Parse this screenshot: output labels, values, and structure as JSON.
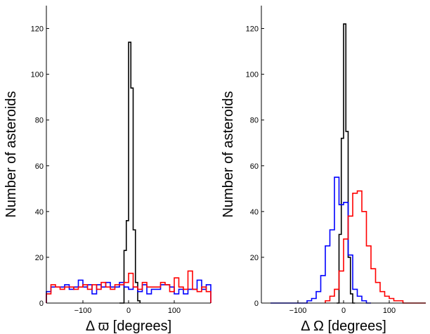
{
  "chart_data": [
    {
      "type": "histogram",
      "xlabel": "Δ ϖ [degrees]",
      "ylabel": "Number of asteroids",
      "xlim": [
        -180,
        180
      ],
      "ylim": [
        0,
        130
      ],
      "xticks": [
        -100,
        0,
        100
      ],
      "yticks": [
        0,
        20,
        40,
        60,
        80,
        100,
        120
      ],
      "grid": false,
      "series": [
        {
          "color": "#000000",
          "bins": [
            {
              "x0": -20,
              "x1": -10,
              "y": 0
            },
            {
              "x0": -10,
              "x1": -5,
              "y": 23
            },
            {
              "x0": -5,
              "x1": 0,
              "y": 36
            },
            {
              "x0": 0,
              "x1": 5,
              "y": 114
            },
            {
              "x0": 5,
              "x1": 10,
              "y": 94
            },
            {
              "x0": 10,
              "x1": 15,
              "y": 32
            },
            {
              "x0": 15,
              "x1": 20,
              "y": 9
            },
            {
              "x0": 20,
              "x1": 25,
              "y": 1
            }
          ]
        },
        {
          "color": "#0000ff",
          "bins": [
            {
              "x0": -180,
              "x1": -170,
              "y": 5
            },
            {
              "x0": -170,
              "x1": -160,
              "y": 7
            },
            {
              "x0": -160,
              "x1": -150,
              "y": 7
            },
            {
              "x0": -150,
              "x1": -140,
              "y": 7
            },
            {
              "x0": -140,
              "x1": -130,
              "y": 8
            },
            {
              "x0": -130,
              "x1": -120,
              "y": 6
            },
            {
              "x0": -120,
              "x1": -110,
              "y": 7
            },
            {
              "x0": -110,
              "x1": -100,
              "y": 10
            },
            {
              "x0": -100,
              "x1": -90,
              "y": 7
            },
            {
              "x0": -90,
              "x1": -80,
              "y": 8
            },
            {
              "x0": -80,
              "x1": -70,
              "y": 4
            },
            {
              "x0": -70,
              "x1": -60,
              "y": 8
            },
            {
              "x0": -60,
              "x1": -50,
              "y": 7
            },
            {
              "x0": -50,
              "x1": -40,
              "y": 9
            },
            {
              "x0": -40,
              "x1": -30,
              "y": 7
            },
            {
              "x0": -30,
              "x1": -20,
              "y": 7
            },
            {
              "x0": -20,
              "x1": -10,
              "y": 9
            },
            {
              "x0": -10,
              "x1": 0,
              "y": 7
            },
            {
              "x0": 0,
              "x1": 10,
              "y": 6
            },
            {
              "x0": 10,
              "x1": 20,
              "y": 7
            },
            {
              "x0": 20,
              "x1": 30,
              "y": 5
            },
            {
              "x0": 30,
              "x1": 40,
              "y": 8
            },
            {
              "x0": 40,
              "x1": 50,
              "y": 4
            },
            {
              "x0": 50,
              "x1": 60,
              "y": 6
            },
            {
              "x0": 60,
              "x1": 70,
              "y": 6
            },
            {
              "x0": 70,
              "x1": 80,
              "y": 8
            },
            {
              "x0": 80,
              "x1": 90,
              "y": 8
            },
            {
              "x0": 90,
              "x1": 100,
              "y": 7
            },
            {
              "x0": 100,
              "x1": 110,
              "y": 4
            },
            {
              "x0": 110,
              "x1": 120,
              "y": 6
            },
            {
              "x0": 120,
              "x1": 130,
              "y": 4
            },
            {
              "x0": 130,
              "x1": 140,
              "y": 6
            },
            {
              "x0": 140,
              "x1": 150,
              "y": 6
            },
            {
              "x0": 150,
              "x1": 160,
              "y": 10
            },
            {
              "x0": 160,
              "x1": 170,
              "y": 6
            },
            {
              "x0": 170,
              "x1": 180,
              "y": 8
            }
          ]
        },
        {
          "color": "#ff0000",
          "bins": [
            {
              "x0": -180,
              "x1": -170,
              "y": 4
            },
            {
              "x0": -170,
              "x1": -160,
              "y": 8
            },
            {
              "x0": -160,
              "x1": -150,
              "y": 7
            },
            {
              "x0": -150,
              "x1": -140,
              "y": 6
            },
            {
              "x0": -140,
              "x1": -130,
              "y": 7
            },
            {
              "x0": -130,
              "x1": -120,
              "y": 7
            },
            {
              "x0": -120,
              "x1": -110,
              "y": 6
            },
            {
              "x0": -110,
              "x1": -100,
              "y": 7
            },
            {
              "x0": -100,
              "x1": -90,
              "y": 8
            },
            {
              "x0": -90,
              "x1": -80,
              "y": 6
            },
            {
              "x0": -80,
              "x1": -70,
              "y": 8
            },
            {
              "x0": -70,
              "x1": -60,
              "y": 6
            },
            {
              "x0": -60,
              "x1": -50,
              "y": 9
            },
            {
              "x0": -50,
              "x1": -40,
              "y": 7
            },
            {
              "x0": -40,
              "x1": -30,
              "y": 6
            },
            {
              "x0": -30,
              "x1": -20,
              "y": 8
            },
            {
              "x0": -20,
              "x1": -10,
              "y": 8
            },
            {
              "x0": -10,
              "x1": 0,
              "y": 9
            },
            {
              "x0": 0,
              "x1": 10,
              "y": 13
            },
            {
              "x0": 10,
              "x1": 20,
              "y": 7
            },
            {
              "x0": 20,
              "x1": 30,
              "y": 6
            },
            {
              "x0": 30,
              "x1": 40,
              "y": 9
            },
            {
              "x0": 40,
              "x1": 50,
              "y": 7
            },
            {
              "x0": 50,
              "x1": 60,
              "y": 7
            },
            {
              "x0": 60,
              "x1": 70,
              "y": 7
            },
            {
              "x0": 70,
              "x1": 80,
              "y": 9
            },
            {
              "x0": 80,
              "x1": 90,
              "y": 8
            },
            {
              "x0": 90,
              "x1": 100,
              "y": 5
            },
            {
              "x0": 100,
              "x1": 110,
              "y": 11
            },
            {
              "x0": 110,
              "x1": 120,
              "y": 7
            },
            {
              "x0": 120,
              "x1": 130,
              "y": 6
            },
            {
              "x0": 130,
              "x1": 140,
              "y": 14
            },
            {
              "x0": 140,
              "x1": 150,
              "y": 6
            },
            {
              "x0": 150,
              "x1": 160,
              "y": 5
            },
            {
              "x0": 160,
              "x1": 170,
              "y": 7
            },
            {
              "x0": 170,
              "x1": 180,
              "y": 5
            }
          ]
        }
      ]
    },
    {
      "type": "histogram",
      "xlabel": "Δ Ω [degrees]",
      "ylabel": "Number of asteroids",
      "xlim": [
        -180,
        180
      ],
      "ylim": [
        0,
        130
      ],
      "xticks": [
        -100,
        0,
        100
      ],
      "yticks": [
        0,
        20,
        40,
        60,
        80,
        100,
        120
      ],
      "grid": false,
      "series": [
        {
          "color": "#000000",
          "bins": [
            {
              "x0": -15,
              "x1": -10,
              "y": 0
            },
            {
              "x0": -10,
              "x1": -5,
              "y": 30
            },
            {
              "x0": -5,
              "x1": 0,
              "y": 72
            },
            {
              "x0": 0,
              "x1": 5,
              "y": 122
            },
            {
              "x0": 5,
              "x1": 10,
              "y": 75
            },
            {
              "x0": 10,
              "x1": 15,
              "y": 20
            },
            {
              "x0": 15,
              "x1": 20,
              "y": 4
            },
            {
              "x0": 20,
              "x1": 25,
              "y": 0
            }
          ]
        },
        {
          "color": "#0000ff",
          "bins": [
            {
              "x0": -160,
              "x1": -80,
              "y": 0
            },
            {
              "x0": -80,
              "x1": -70,
              "y": 1
            },
            {
              "x0": -70,
              "x1": -60,
              "y": 2
            },
            {
              "x0": -60,
              "x1": -50,
              "y": 5
            },
            {
              "x0": -50,
              "x1": -40,
              "y": 12
            },
            {
              "x0": -40,
              "x1": -30,
              "y": 25
            },
            {
              "x0": -30,
              "x1": -20,
              "y": 32
            },
            {
              "x0": -20,
              "x1": -10,
              "y": 55
            },
            {
              "x0": -10,
              "x1": 0,
              "y": 43
            },
            {
              "x0": 0,
              "x1": 10,
              "y": 44
            },
            {
              "x0": 10,
              "x1": 20,
              "y": 21
            },
            {
              "x0": 20,
              "x1": 30,
              "y": 6
            },
            {
              "x0": 30,
              "x1": 40,
              "y": 3
            },
            {
              "x0": 40,
              "x1": 50,
              "y": 1
            },
            {
              "x0": 50,
              "x1": 60,
              "y": 0
            }
          ]
        },
        {
          "color": "#ff0000",
          "bins": [
            {
              "x0": -40,
              "x1": -30,
              "y": 1
            },
            {
              "x0": -30,
              "x1": -20,
              "y": 3
            },
            {
              "x0": -20,
              "x1": -10,
              "y": 6
            },
            {
              "x0": -10,
              "x1": 0,
              "y": 14
            },
            {
              "x0": 0,
              "x1": 10,
              "y": 28
            },
            {
              "x0": 10,
              "x1": 20,
              "y": 38
            },
            {
              "x0": 20,
              "x1": 30,
              "y": 48
            },
            {
              "x0": 30,
              "x1": 40,
              "y": 49
            },
            {
              "x0": 40,
              "x1": 50,
              "y": 40
            },
            {
              "x0": 50,
              "x1": 60,
              "y": 25
            },
            {
              "x0": 60,
              "x1": 70,
              "y": 15
            },
            {
              "x0": 70,
              "x1": 80,
              "y": 9
            },
            {
              "x0": 80,
              "x1": 90,
              "y": 5
            },
            {
              "x0": 90,
              "x1": 100,
              "y": 3
            },
            {
              "x0": 100,
              "x1": 110,
              "y": 2
            },
            {
              "x0": 110,
              "x1": 130,
              "y": 1
            },
            {
              "x0": 130,
              "x1": 180,
              "y": 0
            }
          ]
        }
      ]
    }
  ]
}
